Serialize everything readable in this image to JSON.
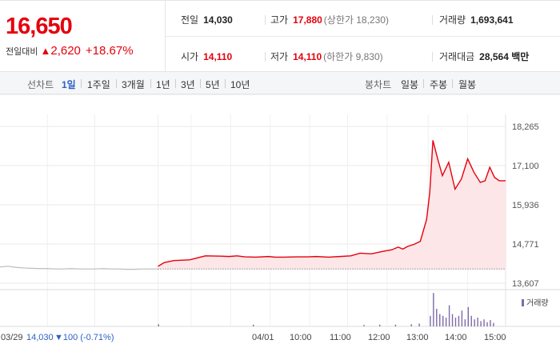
{
  "quote": {
    "price": "16,650",
    "change_label": "전일대비",
    "change_arrow": "▲",
    "change_value": "2,620",
    "change_pct": "+18.67%"
  },
  "stats": {
    "prev_label": "전일",
    "prev_value": "14,030",
    "high_label": "고가",
    "high_value": "17,880",
    "high_sub": "(상한가 18,230)",
    "volume_label": "거래량",
    "volume_value": "1,693,641",
    "open_label": "시가",
    "open_value": "14,110",
    "low_label": "저가",
    "low_value": "14,110",
    "low_sub": "(하한가 9,830)",
    "amount_label": "거래대금",
    "amount_value": "28,564",
    "amount_unit": "백만"
  },
  "tabs": {
    "line_title": "선차트",
    "line_tabs": [
      "1일",
      "1주일",
      "3개월",
      "1년",
      "3년",
      "5년",
      "10년"
    ],
    "active": "1일",
    "candle_title": "봉차트",
    "candle_tabs": [
      "일봉",
      "주봉",
      "월봉"
    ]
  },
  "colors": {
    "up": "#e5000d",
    "down": "#2d5fc4",
    "prev_day_line": "#bbbbbb",
    "volume_bar": "#7e6aa8",
    "grid": "#e8e8e8"
  },
  "chart_data": {
    "type": "line",
    "title": "",
    "y_ticks": [
      "18,265",
      "17,100",
      "15,936",
      "14,771",
      "13,607"
    ],
    "ylim": [
      13607,
      18265
    ],
    "prev_close": 14030,
    "prev_day_label": "03/29",
    "prev_day_close": "14,030",
    "prev_day_change": "▼100 (-0.71%)",
    "x_ticks": [
      "04/01",
      "10:00",
      "11:00",
      "12:00",
      "13:00",
      "14:00",
      "15:00"
    ],
    "volume_legend": "거래량",
    "series": [
      {
        "x": [
          0,
          0.05,
          0.1,
          0.15,
          0.2,
          0.25,
          0.3,
          0.35,
          0.4,
          0.45,
          0.5,
          0.55,
          0.6,
          0.65,
          0.7,
          0.75,
          0.8,
          0.85,
          0.9,
          0.95,
          1.0
        ],
        "values": [
          14090,
          14110,
          14080,
          14060,
          14050,
          14040,
          14040,
          14030,
          14030,
          14040,
          14030,
          14030,
          14030,
          14040,
          14030,
          14030,
          14020,
          14020,
          14030,
          14030,
          14030
        ]
      },
      {
        "x": [
          1.0,
          1.04,
          1.1,
          1.2,
          1.25,
          1.3,
          1.4,
          1.45,
          1.5,
          1.55,
          1.62,
          1.7,
          1.74,
          1.8,
          1.88,
          1.95,
          2.0,
          2.08,
          2.15,
          2.22,
          2.28,
          2.35,
          2.42,
          2.48,
          2.52,
          2.55,
          2.58,
          2.62,
          2.66,
          2.7,
          2.72,
          2.74,
          2.77,
          2.8,
          2.84,
          2.88,
          2.92,
          2.96,
          3.0,
          3.04,
          3.07,
          3.1,
          3.13,
          3.16,
          3.18,
          3.2
        ],
        "values": [
          14110,
          14220,
          14280,
          14300,
          14360,
          14420,
          14410,
          14400,
          14420,
          14390,
          14380,
          14400,
          14380,
          14380,
          14390,
          14390,
          14400,
          14380,
          14400,
          14420,
          14500,
          14480,
          14550,
          14600,
          14680,
          14620,
          14700,
          14760,
          14850,
          15500,
          16300,
          17850,
          17300,
          16800,
          17200,
          16400,
          16700,
          17300,
          16900,
          16600,
          16650,
          17050,
          16750,
          16650,
          16650,
          16650
        ]
      }
    ],
    "volume": [
      {
        "x": 2.74,
        "v": 0.95
      },
      {
        "x": 2.76,
        "v": 0.5
      },
      {
        "x": 2.78,
        "v": 0.35
      },
      {
        "x": 2.8,
        "v": 0.3
      },
      {
        "x": 2.82,
        "v": 0.25
      },
      {
        "x": 2.84,
        "v": 0.6
      },
      {
        "x": 2.86,
        "v": 0.35
      },
      {
        "x": 2.88,
        "v": 0.25
      },
      {
        "x": 2.9,
        "v": 0.3
      },
      {
        "x": 2.92,
        "v": 0.45
      },
      {
        "x": 2.94,
        "v": 0.2
      },
      {
        "x": 2.96,
        "v": 0.55
      },
      {
        "x": 2.98,
        "v": 0.3
      },
      {
        "x": 3.0,
        "v": 0.2
      },
      {
        "x": 3.02,
        "v": 0.25
      },
      {
        "x": 3.04,
        "v": 0.15
      },
      {
        "x": 3.06,
        "v": 0.2
      },
      {
        "x": 3.08,
        "v": 0.12
      },
      {
        "x": 3.1,
        "v": 0.18
      },
      {
        "x": 3.12,
        "v": 0.1
      },
      {
        "x": 2.72,
        "v": 0.3
      },
      {
        "x": 2.6,
        "v": 0.06
      },
      {
        "x": 2.65,
        "v": 0.08
      },
      {
        "x": 2.5,
        "v": 0.05
      },
      {
        "x": 2.4,
        "v": 0.05
      },
      {
        "x": 2.3,
        "v": 0.04
      },
      {
        "x": 1.6,
        "v": 0.05
      },
      {
        "x": 1.0,
        "v": 0.06
      }
    ]
  }
}
